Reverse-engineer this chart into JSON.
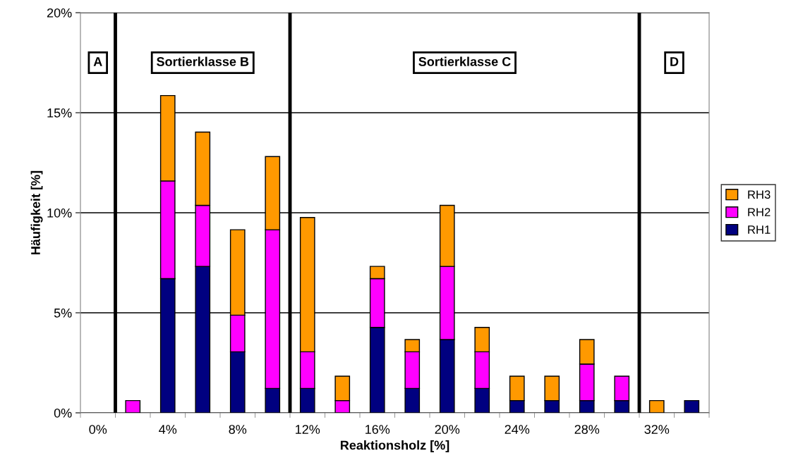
{
  "chart_data": {
    "type": "bar",
    "stacked": true,
    "xlabel": "Reaktionsholz [%]",
    "ylabel": "Häufigkeit [%]",
    "x": [
      2,
      4,
      6,
      8,
      10,
      12,
      14,
      16,
      18,
      20,
      22,
      24,
      26,
      28,
      30,
      32,
      34
    ],
    "series": [
      {
        "name": "RH1",
        "color": "#000080",
        "values": [
          null,
          6.71,
          7.32,
          3.05,
          1.22,
          1.22,
          null,
          4.27,
          1.22,
          3.66,
          1.22,
          0.61,
          0.61,
          0.61,
          0.61,
          null,
          0.61
        ]
      },
      {
        "name": "RH2",
        "color": "#ff00ff",
        "values": [
          0.61,
          4.88,
          3.05,
          1.83,
          7.93,
          1.83,
          0.61,
          2.44,
          1.83,
          3.66,
          1.83,
          null,
          null,
          1.83,
          1.22,
          null,
          null
        ]
      },
      {
        "name": "RH3",
        "color": "#ff9900",
        "values": [
          null,
          4.27,
          3.66,
          4.27,
          3.66,
          6.71,
          1.22,
          0.61,
          0.61,
          3.05,
          1.22,
          1.22,
          1.22,
          1.22,
          null,
          0.61,
          null
        ]
      }
    ],
    "xlim": [
      -1,
      35
    ],
    "xticks": [
      {
        "value": -1,
        "label": null
      },
      {
        "value": 0,
        "label": "0%"
      },
      {
        "value": 1,
        "label": null
      },
      {
        "value": 3,
        "label": null
      },
      {
        "value": 4,
        "label": "4%"
      },
      {
        "value": 5,
        "label": null
      },
      {
        "value": 7,
        "label": null
      },
      {
        "value": 8,
        "label": "8%"
      },
      {
        "value": 9,
        "label": null
      },
      {
        "value": 11,
        "label": null
      },
      {
        "value": 12,
        "label": "12%"
      },
      {
        "value": 13,
        "label": null
      },
      {
        "value": 15,
        "label": null
      },
      {
        "value": 16,
        "label": "16%"
      },
      {
        "value": 17,
        "label": null
      },
      {
        "value": 19,
        "label": null
      },
      {
        "value": 20,
        "label": "20%"
      },
      {
        "value": 21,
        "label": null
      },
      {
        "value": 23,
        "label": null
      },
      {
        "value": 24,
        "label": "24%"
      },
      {
        "value": 25,
        "label": null
      },
      {
        "value": 27,
        "label": null
      },
      {
        "value": 28,
        "label": "28%"
      },
      {
        "value": 29,
        "label": null
      },
      {
        "value": 31,
        "label": null
      },
      {
        "value": 32,
        "label": "32%"
      },
      {
        "value": 33,
        "label": null
      },
      {
        "value": 35,
        "label": null
      }
    ],
    "ylim": [
      0,
      20
    ],
    "yticks": [
      {
        "value": 0,
        "label": "0%"
      },
      {
        "value": 5,
        "label": "5%"
      },
      {
        "value": 10,
        "label": "10%"
      },
      {
        "value": 15,
        "label": "15%"
      },
      {
        "value": 20,
        "label": "20%"
      }
    ],
    "grid": "y",
    "legend": "right",
    "ref_lines": [
      {
        "axis": "x",
        "value": 1,
        "color": "#000000"
      },
      {
        "axis": "x",
        "value": 11,
        "color": "#000000"
      },
      {
        "axis": "x",
        "value": 31,
        "color": "#000000"
      }
    ],
    "annotations": [
      "A",
      "Sortierklasse B",
      "Sortierklasse C",
      "D"
    ]
  }
}
